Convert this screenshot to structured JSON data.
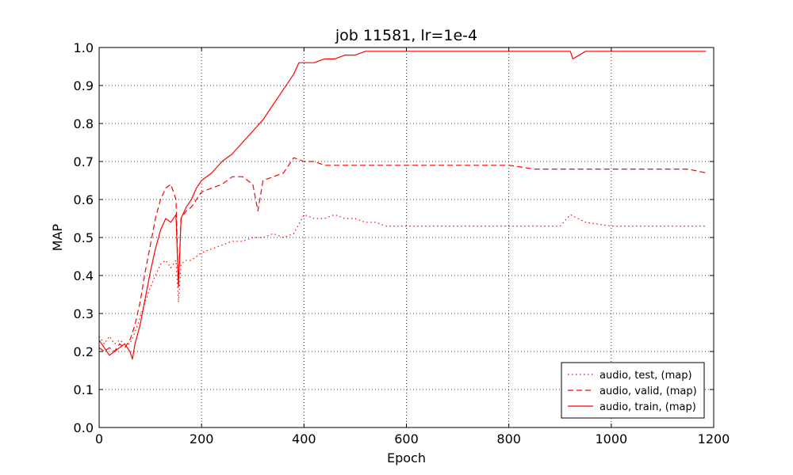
{
  "chart_data": {
    "type": "line",
    "title": "job 11581, lr=1e-4",
    "xlabel": "Epoch",
    "ylabel": "MAP",
    "xlim": [
      0,
      1200
    ],
    "ylim": [
      0.0,
      1.0
    ],
    "xticks": [
      0,
      200,
      400,
      600,
      800,
      1000,
      1200
    ],
    "yticks": [
      "0.0",
      "0.1",
      "0.2",
      "0.3",
      "0.4",
      "0.5",
      "0.6",
      "0.7",
      "0.8",
      "0.9",
      "1.0"
    ],
    "grid": true,
    "legend_position": "lower-right",
    "series": [
      {
        "name": "audio, test, (map)",
        "style": "dotted",
        "color": "#ff0000",
        "x": [
          0,
          10,
          20,
          30,
          40,
          50,
          60,
          70,
          80,
          90,
          100,
          110,
          120,
          130,
          140,
          150,
          155,
          160,
          170,
          180,
          190,
          200,
          220,
          240,
          260,
          280,
          300,
          320,
          340,
          360,
          380,
          400,
          420,
          440,
          460,
          480,
          500,
          520,
          540,
          560,
          580,
          600,
          650,
          700,
          750,
          800,
          850,
          900,
          920,
          950,
          1000,
          1050,
          1100,
          1150,
          1185
        ],
        "y": [
          0.24,
          0.22,
          0.24,
          0.22,
          0.23,
          0.22,
          0.22,
          0.25,
          0.29,
          0.33,
          0.37,
          0.4,
          0.43,
          0.44,
          0.42,
          0.44,
          0.33,
          0.43,
          0.44,
          0.44,
          0.45,
          0.46,
          0.47,
          0.48,
          0.49,
          0.49,
          0.5,
          0.5,
          0.51,
          0.5,
          0.51,
          0.56,
          0.55,
          0.55,
          0.56,
          0.55,
          0.55,
          0.54,
          0.54,
          0.53,
          0.53,
          0.53,
          0.53,
          0.53,
          0.53,
          0.53,
          0.53,
          0.53,
          0.56,
          0.54,
          0.53,
          0.53,
          0.53,
          0.53,
          0.53
        ]
      },
      {
        "name": "audio, valid, (map)",
        "style": "dashed",
        "color": "#ff0000",
        "x": [
          0,
          10,
          20,
          30,
          40,
          50,
          60,
          70,
          80,
          90,
          100,
          110,
          120,
          130,
          140,
          150,
          155,
          160,
          170,
          180,
          190,
          200,
          220,
          240,
          260,
          280,
          300,
          310,
          320,
          340,
          360,
          380,
          400,
          420,
          440,
          460,
          480,
          500,
          550,
          600,
          650,
          700,
          750,
          800,
          850,
          900,
          950,
          1000,
          1050,
          1100,
          1150,
          1185
        ],
        "y": [
          0.21,
          0.2,
          0.21,
          0.2,
          0.22,
          0.21,
          0.23,
          0.27,
          0.33,
          0.41,
          0.48,
          0.55,
          0.6,
          0.63,
          0.64,
          0.6,
          0.37,
          0.55,
          0.57,
          0.58,
          0.6,
          0.62,
          0.63,
          0.64,
          0.66,
          0.66,
          0.64,
          0.57,
          0.65,
          0.66,
          0.67,
          0.71,
          0.7,
          0.7,
          0.69,
          0.69,
          0.69,
          0.69,
          0.69,
          0.69,
          0.69,
          0.69,
          0.69,
          0.69,
          0.68,
          0.68,
          0.68,
          0.68,
          0.68,
          0.68,
          0.68,
          0.67
        ]
      },
      {
        "name": "audio, train, (map)",
        "style": "solid",
        "color": "#ff0000",
        "x": [
          0,
          10,
          20,
          30,
          40,
          50,
          60,
          65,
          70,
          80,
          90,
          100,
          110,
          120,
          130,
          140,
          150,
          155,
          160,
          170,
          180,
          190,
          200,
          220,
          240,
          260,
          280,
          300,
          320,
          340,
          360,
          380,
          390,
          400,
          420,
          440,
          460,
          480,
          500,
          520,
          550,
          600,
          700,
          800,
          900,
          920,
          925,
          950,
          1000,
          1050,
          1100,
          1150,
          1185
        ],
        "y": [
          0.23,
          0.21,
          0.19,
          0.2,
          0.21,
          0.22,
          0.2,
          0.18,
          0.22,
          0.27,
          0.34,
          0.41,
          0.47,
          0.52,
          0.55,
          0.54,
          0.56,
          0.37,
          0.55,
          0.58,
          0.6,
          0.63,
          0.65,
          0.67,
          0.7,
          0.72,
          0.75,
          0.78,
          0.81,
          0.85,
          0.89,
          0.93,
          0.96,
          0.96,
          0.96,
          0.97,
          0.97,
          0.98,
          0.98,
          0.99,
          0.99,
          0.99,
          0.99,
          0.99,
          0.99,
          0.99,
          0.97,
          0.99,
          0.99,
          0.99,
          0.99,
          0.99,
          0.99
        ]
      }
    ]
  }
}
